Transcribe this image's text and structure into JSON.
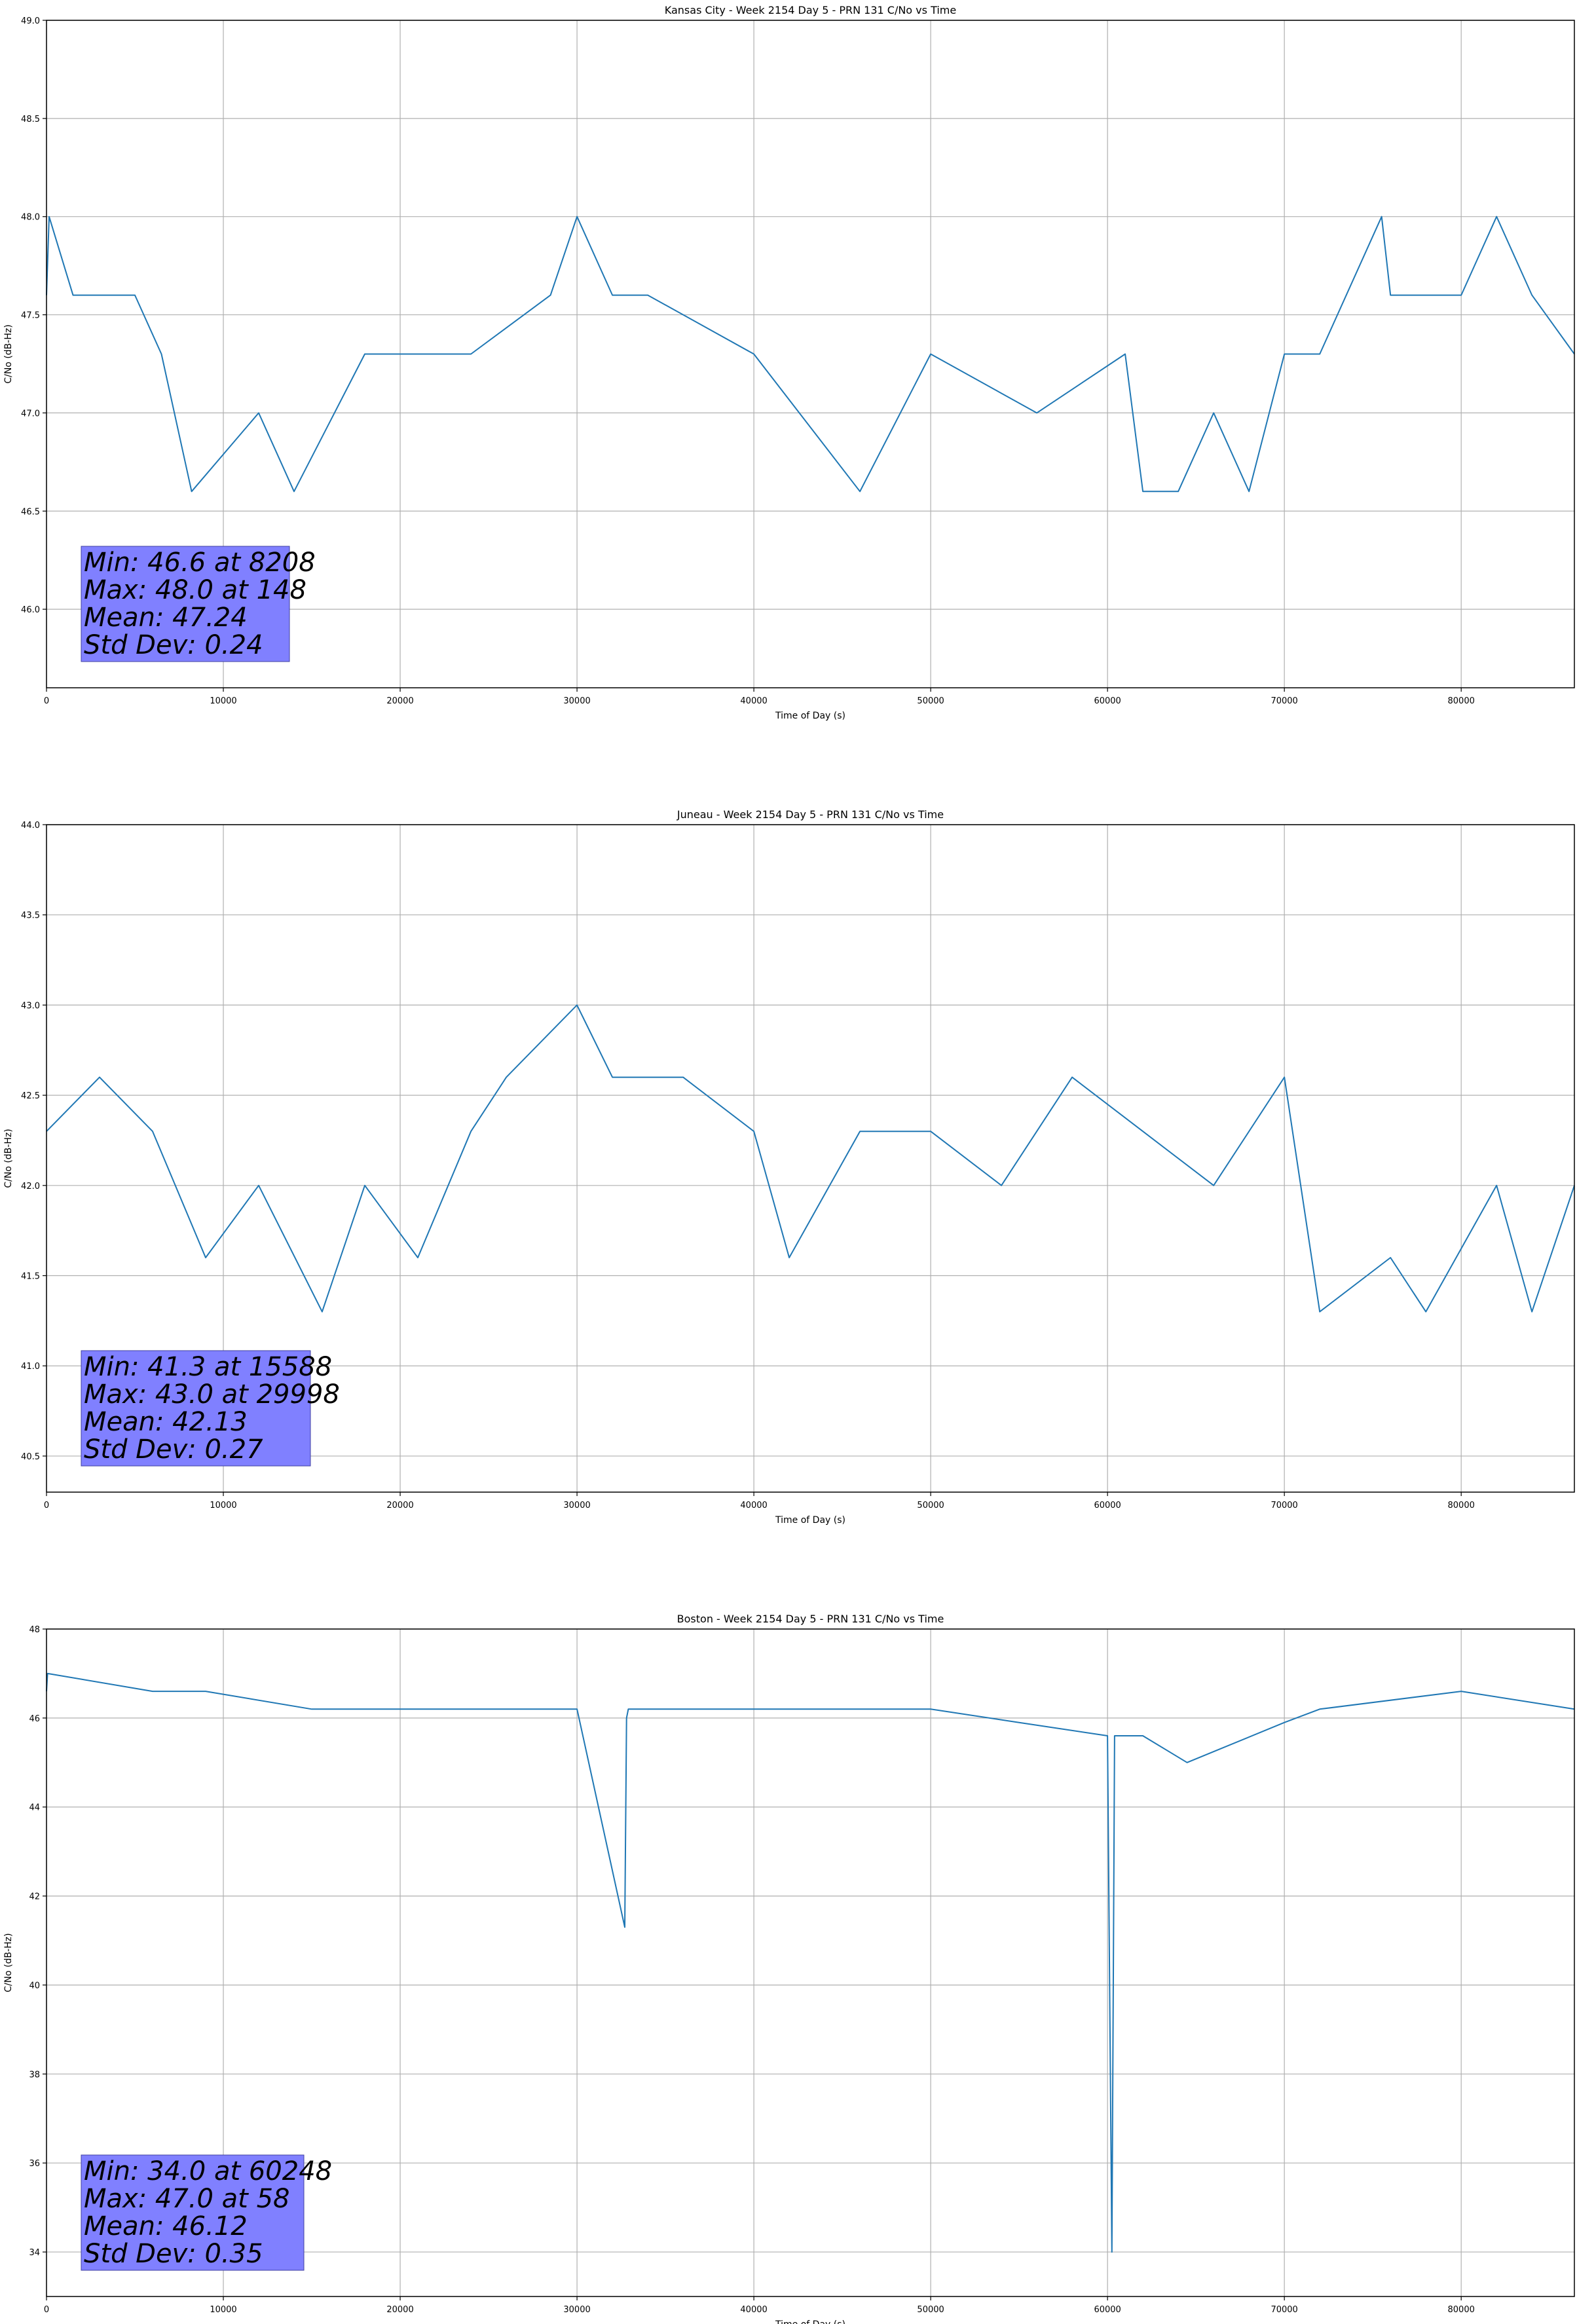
{
  "figure": {
    "colors": {
      "series": "#1f77b4",
      "stats_box": "#8080ff",
      "grid": "#b0b0b0"
    }
  },
  "chart_data": [
    {
      "type": "line",
      "title": "Kansas City - Week 2154 Day 5 - PRN 131 C/No vs Time",
      "xlabel": "Time of Day (s)",
      "ylabel": "C/No (dB-Hz)",
      "xlim": [
        0,
        86400
      ],
      "ylim": [
        45.6,
        49.0
      ],
      "xticks": [
        0,
        10000,
        20000,
        30000,
        40000,
        50000,
        60000,
        70000,
        80000
      ],
      "yticks": [
        46.0,
        46.5,
        47.0,
        47.5,
        48.0,
        48.5,
        49.0
      ],
      "ytick_decimals": 1,
      "grid": true,
      "stats": [
        "Min: 46.6 at 8208",
        "Max: 48.0 at 148",
        "Mean: 47.24",
        "Std Dev: 0.24"
      ],
      "series": [
        {
          "name": "C/No",
          "x": [
            0,
            148,
            1500,
            5000,
            6500,
            8208,
            12000,
            14000,
            18000,
            24000,
            28500,
            30000,
            32000,
            34000,
            40000,
            46000,
            50000,
            56000,
            61000,
            62000,
            64000,
            66000,
            68000,
            70000,
            72000,
            75500,
            76000,
            80000,
            82000,
            84000,
            86400
          ],
          "y": [
            47.6,
            48.0,
            47.6,
            47.6,
            47.3,
            46.6,
            47.0,
            46.6,
            47.3,
            47.3,
            47.6,
            48.0,
            47.6,
            47.6,
            47.3,
            46.6,
            47.3,
            47.0,
            47.3,
            46.6,
            46.6,
            47.0,
            46.6,
            47.3,
            47.3,
            48.0,
            47.6,
            47.6,
            48.0,
            47.6,
            47.3
          ]
        }
      ]
    },
    {
      "type": "line",
      "title": "Juneau - Week 2154 Day 5 - PRN 131 C/No vs Time",
      "xlabel": "Time of Day (s)",
      "ylabel": "C/No (dB-Hz)",
      "xlim": [
        0,
        86400
      ],
      "ylim": [
        40.3,
        44.0
      ],
      "xticks": [
        0,
        10000,
        20000,
        30000,
        40000,
        50000,
        60000,
        70000,
        80000
      ],
      "yticks": [
        40.5,
        41.0,
        41.5,
        42.0,
        42.5,
        43.0,
        43.5,
        44.0
      ],
      "ytick_decimals": 1,
      "grid": true,
      "stats": [
        "Min: 41.3 at 15588",
        "Max: 43.0 at 29998",
        "Mean: 42.13",
        "Std Dev: 0.27"
      ],
      "series": [
        {
          "name": "C/No",
          "x": [
            0,
            3000,
            6000,
            9000,
            12000,
            15588,
            18000,
            21000,
            24000,
            26000,
            29998,
            32000,
            36000,
            40000,
            42000,
            46000,
            50000,
            54000,
            58000,
            62000,
            66000,
            70000,
            72000,
            76000,
            78000,
            82000,
            84000,
            86400
          ],
          "y": [
            42.3,
            42.6,
            42.3,
            41.6,
            42.0,
            41.3,
            42.0,
            41.6,
            42.3,
            42.6,
            43.0,
            42.6,
            42.6,
            42.3,
            41.6,
            42.3,
            42.3,
            42.0,
            42.6,
            42.3,
            42.0,
            42.6,
            41.3,
            41.6,
            41.3,
            42.0,
            41.3,
            42.0
          ]
        }
      ]
    },
    {
      "type": "line",
      "title": "Boston - Week 2154 Day 5 - PRN 131 C/No vs Time",
      "xlabel": "Time of Day (s)",
      "ylabel": "C/No (dB-Hz)",
      "xlim": [
        0,
        86400
      ],
      "ylim": [
        33.0,
        48.0
      ],
      "xticks": [
        0,
        10000,
        20000,
        30000,
        40000,
        50000,
        60000,
        70000,
        80000
      ],
      "yticks": [
        34,
        36,
        38,
        40,
        42,
        44,
        46,
        48
      ],
      "ytick_decimals": 0,
      "grid": true,
      "stats": [
        "Min: 34.0 at 60248",
        "Max: 47.0 at 58",
        "Mean: 46.12",
        "Std Dev: 0.35"
      ],
      "series": [
        {
          "name": "C/No",
          "x": [
            0,
            58,
            6000,
            9000,
            15000,
            20000,
            30000,
            32700,
            32800,
            32900,
            40000,
            50000,
            55000,
            60000,
            60248,
            60400,
            62000,
            64500,
            70000,
            72000,
            80000,
            86400
          ],
          "y": [
            46.6,
            47.0,
            46.6,
            46.6,
            46.2,
            46.2,
            46.2,
            41.3,
            46.0,
            46.2,
            46.2,
            46.2,
            45.9,
            45.6,
            34.0,
            45.6,
            45.6,
            45.0,
            45.9,
            46.2,
            46.6,
            46.2
          ]
        }
      ]
    }
  ]
}
